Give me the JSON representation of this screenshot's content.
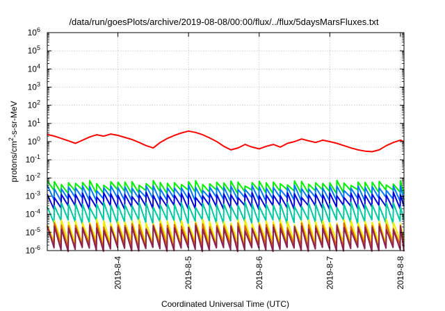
{
  "chart_data": {
    "type": "line",
    "title": "/data/run/goesPlots/archive/2019-08-08/00:00/flux/../flux/5daysMarsFluxes.txt",
    "xlabel": "Coordinated Universal Time (UTC)",
    "ylabel": "protons/cm²-s-sr-MeV",
    "ylabel_parts": {
      "pre": "protons/cm",
      "sup": "2",
      "post": "-s-sr-MeV"
    },
    "yscale": "log",
    "ylim": [
      1e-06,
      1000000.0
    ],
    "xlim": [
      0,
      5.05
    ],
    "xlim_dates": [
      "2019-08-03 00:00",
      "2019-08-08 01:12"
    ],
    "grid": true,
    "legend": "none",
    "y_ticks": [
      {
        "value": 1e-06,
        "mant": "10",
        "exp": "-6"
      },
      {
        "value": 1e-05,
        "mant": "10",
        "exp": "-5"
      },
      {
        "value": 0.0001,
        "mant": "10",
        "exp": "-4"
      },
      {
        "value": 0.001,
        "mant": "10",
        "exp": "-3"
      },
      {
        "value": 0.01,
        "mant": "10",
        "exp": "-2"
      },
      {
        "value": 0.1,
        "mant": "10",
        "exp": "-1"
      },
      {
        "value": 1,
        "mant": "10",
        "exp": "0"
      },
      {
        "value": 10.0,
        "mant": "10",
        "exp": "1"
      },
      {
        "value": 100.0,
        "mant": "10",
        "exp": "2"
      },
      {
        "value": 1000.0,
        "mant": "10",
        "exp": "3"
      },
      {
        "value": 10000.0,
        "mant": "10",
        "exp": "4"
      },
      {
        "value": 100000.0,
        "mant": "10",
        "exp": "5"
      },
      {
        "value": 1000000.0,
        "mant": "10",
        "exp": "6"
      }
    ],
    "x_ticks": [
      {
        "value": 1,
        "label": "2019-8-4"
      },
      {
        "value": 2,
        "label": "2019-8-5"
      },
      {
        "value": 3,
        "label": "2019-8-6"
      },
      {
        "value": 4,
        "label": "2019-8-7"
      },
      {
        "value": 5,
        "label": "2019-8-8"
      }
    ],
    "x": [
      0,
      0.1,
      0.2,
      0.3,
      0.4,
      0.5,
      0.6,
      0.7,
      0.8,
      0.9,
      1.0,
      1.1,
      1.2,
      1.3,
      1.4,
      1.5,
      1.6,
      1.7,
      1.8,
      1.9,
      2.0,
      2.1,
      2.2,
      2.3,
      2.4,
      2.5,
      2.6,
      2.7,
      2.8,
      2.9,
      3.0,
      3.1,
      3.2,
      3.3,
      3.4,
      3.5,
      3.6,
      3.7,
      3.8,
      3.9,
      4.0,
      4.1,
      4.2,
      4.3,
      4.4,
      4.5,
      4.6,
      4.7,
      4.8,
      4.9,
      5.0,
      5.05
    ],
    "series": [
      {
        "color": "#ff0000",
        "values": [
          2.5,
          2.0,
          1.5,
          1.1,
          0.8,
          1.2,
          1.8,
          2.4,
          2.0,
          2.6,
          2.2,
          1.7,
          1.3,
          0.9,
          0.6,
          0.45,
          0.9,
          1.5,
          2.2,
          3.0,
          3.8,
          3.2,
          2.4,
          1.6,
          1.0,
          0.55,
          0.35,
          0.45,
          0.7,
          0.5,
          0.4,
          0.55,
          0.7,
          0.5,
          0.8,
          1.0,
          1.4,
          1.1,
          0.9,
          1.2,
          1.0,
          0.8,
          0.6,
          0.45,
          0.35,
          0.3,
          0.28,
          0.35,
          0.6,
          0.9,
          1.2,
          1.0
        ]
      },
      {
        "color": "#00ee00",
        "sawtooth": {
          "period": 0.1,
          "peak": 0.0055,
          "trough": 0.0018
        }
      },
      {
        "color": "#0077ff",
        "sawtooth": {
          "period": 0.1,
          "peak": 0.003,
          "trough": 0.0007
        }
      },
      {
        "color": "#0000dd",
        "sawtooth": {
          "period": 0.1,
          "peak": 0.0012,
          "trough": 0.00025
        }
      },
      {
        "color": "#00c8a0",
        "sawtooth": {
          "period": 0.1,
          "peak": 0.00035,
          "trough": 4e-05
        }
      },
      {
        "color": "#eeee00",
        "sawtooth": {
          "period": 0.1,
          "peak": 4e-05,
          "trough": 3e-06
        }
      },
      {
        "color": "#dd6600",
        "sawtooth": {
          "period": 0.1,
          "peak": 2.5e-05,
          "trough": 1.8e-06
        }
      },
      {
        "color": "#8b2252",
        "sawtooth": {
          "period": 0.1,
          "peak": 1.8e-05,
          "trough": 1.2e-06
        }
      }
    ]
  }
}
